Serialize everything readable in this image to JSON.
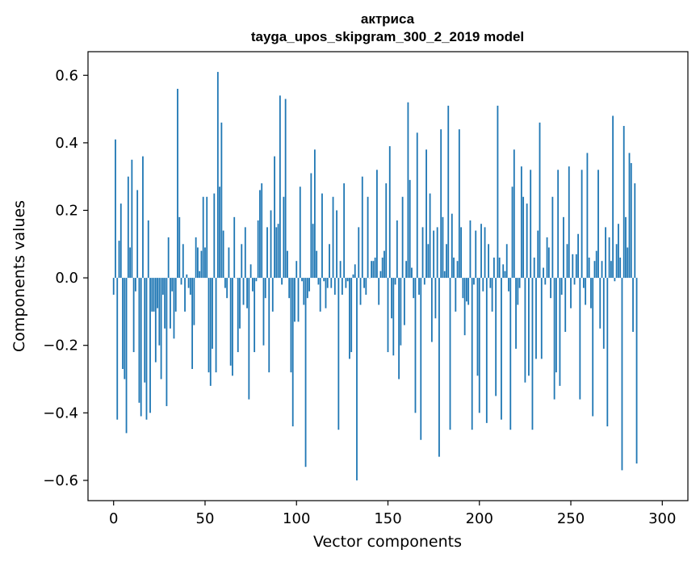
{
  "chart_data": {
    "type": "bar",
    "title": "актриса",
    "subtitle": "tayga_upos_skipgram_300_2_2019 model",
    "xlabel": "Vector components",
    "ylabel": "Components values",
    "xlim": [
      -14,
      314
    ],
    "ylim": [
      -0.66,
      0.67
    ],
    "xticks": [
      0,
      50,
      100,
      150,
      200,
      250,
      300
    ],
    "xtick_labels": [
      "0",
      "50",
      "100",
      "150",
      "200",
      "250",
      "300"
    ],
    "yticks": [
      -0.6,
      -0.4,
      -0.2,
      0.0,
      0.2,
      0.4,
      0.6
    ],
    "ytick_labels": [
      "−0.6",
      "−0.4",
      "−0.2",
      "0.0",
      "0.2",
      "0.4",
      "0.6"
    ],
    "grid": false,
    "color": "#1f77b4",
    "values": [
      -0.05,
      0.41,
      -0.42,
      0.11,
      0.22,
      -0.27,
      -0.3,
      -0.46,
      0.3,
      0.09,
      0.35,
      -0.22,
      -0.04,
      0.26,
      -0.37,
      -0.41,
      0.36,
      -0.31,
      -0.42,
      0.17,
      -0.4,
      -0.1,
      -0.1,
      -0.25,
      -0.09,
      -0.2,
      -0.3,
      -0.05,
      -0.15,
      -0.38,
      0.12,
      -0.15,
      -0.04,
      -0.18,
      -0.1,
      0.56,
      0.18,
      -0.02,
      0.1,
      -0.1,
      0.01,
      -0.03,
      -0.05,
      -0.27,
      -0.14,
      0.12,
      0.09,
      0.02,
      0.08,
      0.24,
      0.09,
      0.24,
      -0.28,
      -0.32,
      -0.21,
      0.25,
      -0.28,
      0.61,
      0.27,
      0.46,
      0.14,
      -0.03,
      -0.06,
      0.09,
      -0.26,
      -0.29,
      0.18,
      0.0,
      -0.22,
      -0.15,
      0.1,
      -0.08,
      0.15,
      -0.09,
      -0.36,
      0.04,
      -0.04,
      -0.22,
      -0.01,
      0.17,
      0.26,
      0.28,
      -0.2,
      -0.06,
      0.15,
      -0.28,
      0.2,
      -0.1,
      0.36,
      0.15,
      0.16,
      0.54,
      -0.02,
      0.24,
      0.53,
      0.08,
      -0.06,
      -0.28,
      -0.44,
      -0.13,
      0.05,
      -0.13,
      0.27,
      -0.01,
      -0.08,
      -0.56,
      -0.06,
      -0.04,
      0.31,
      0.16,
      0.38,
      0.08,
      -0.02,
      -0.1,
      0.25,
      -0.01,
      -0.09,
      -0.03,
      0.1,
      -0.03,
      0.24,
      -0.05,
      0.2,
      -0.45,
      0.05,
      -0.05,
      0.28,
      -0.03,
      -0.01,
      -0.24,
      -0.22,
      0.01,
      0.04,
      -0.6,
      0.15,
      -0.08,
      0.3,
      -0.03,
      -0.05,
      0.24,
      0.0,
      0.05,
      0.05,
      0.06,
      0.32,
      -0.08,
      0.02,
      0.06,
      0.08,
      0.28,
      -0.22,
      0.39,
      -0.12,
      -0.23,
      -0.02,
      0.17,
      -0.3,
      -0.2,
      0.24,
      -0.14,
      0.05,
      0.52,
      0.29,
      0.03,
      -0.06,
      -0.4,
      0.43,
      -0.05,
      -0.48,
      0.15,
      -0.02,
      0.38,
      0.1,
      0.25,
      -0.19,
      0.14,
      -0.12,
      0.15,
      -0.53,
      0.44,
      0.18,
      0.02,
      0.1,
      0.51,
      -0.45,
      0.19,
      0.06,
      -0.1,
      0.05,
      0.44,
      0.15,
      -0.06,
      -0.17,
      -0.07,
      -0.08,
      0.17,
      -0.45,
      -0.02,
      0.14,
      -0.29,
      -0.4,
      0.16,
      -0.04,
      0.15,
      -0.43,
      0.1,
      -0.03,
      -0.1,
      0.06,
      -0.35,
      0.51,
      0.06,
      -0.42,
      0.04,
      0.02,
      0.1,
      -0.04,
      -0.45,
      0.27,
      0.38,
      -0.21,
      -0.08,
      -0.03,
      0.33,
      0.24,
      -0.31,
      0.22,
      -0.29,
      0.32,
      -0.45,
      0.06,
      -0.24,
      0.14,
      0.46,
      -0.24,
      0.03,
      -0.02,
      0.12,
      0.09,
      -0.06,
      0.24,
      -0.36,
      -0.28,
      0.32,
      -0.32,
      -0.05,
      0.18,
      -0.16,
      0.1,
      0.33,
      -0.09,
      0.07,
      -0.02,
      0.07,
      0.13,
      -0.36,
      0.32,
      -0.03,
      -0.08,
      0.37,
      0.06,
      -0.09,
      -0.41,
      0.05,
      0.08,
      0.32,
      -0.15,
      0.05,
      -0.21,
      0.15,
      -0.44,
      0.12,
      0.05,
      0.48,
      -0.01,
      0.1,
      0.16,
      0.06,
      -0.57,
      0.45,
      0.18,
      0.09,
      0.37,
      0.34,
      -0.16,
      0.28,
      -0.55
    ]
  }
}
